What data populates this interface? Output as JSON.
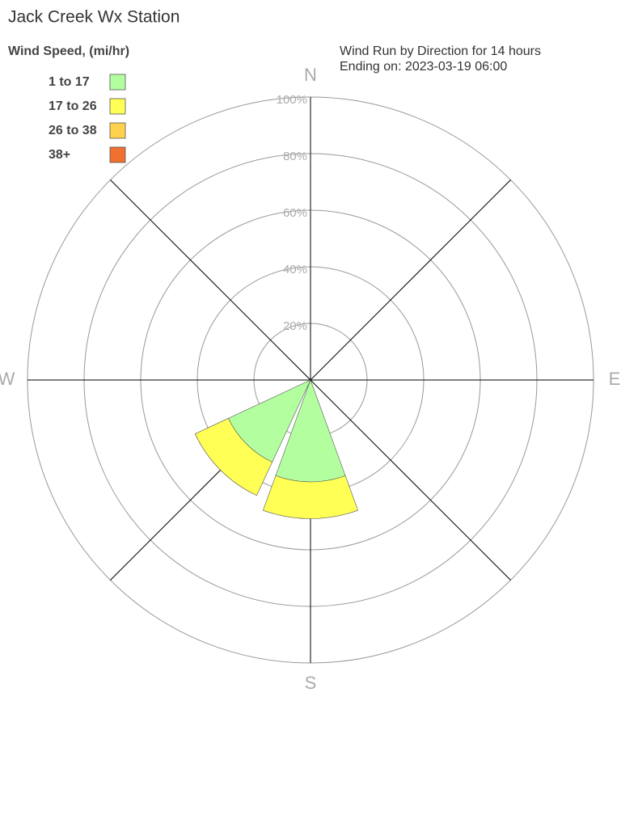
{
  "chart_data": {
    "type": "windrose",
    "title": "Jack Creek Wx Station",
    "subtitle": [
      "Wind Run by Direction for 14 hours",
      "Ending on: 2023-03-19 06:00"
    ],
    "legend_title": "Wind Speed, (mi/hr)",
    "directions": [
      "N",
      null,
      "E",
      null,
      "S",
      null,
      "W",
      null
    ],
    "series": [
      {
        "name": "1 to 17",
        "color": "#b3ffa0",
        "values": [
          0,
          0,
          0,
          0,
          36,
          32,
          0,
          0
        ]
      },
      {
        "name": "17 to 26",
        "color": "#ffff55",
        "values": [
          0,
          0,
          0,
          0,
          13,
          13,
          0,
          0
        ]
      },
      {
        "name": "26 to 38",
        "color": "#ffd24d",
        "values": [
          0,
          0,
          0,
          0,
          0,
          0,
          0,
          0
        ]
      },
      {
        "name": "38+",
        "color": "#f07030",
        "values": [
          0,
          0,
          0,
          0,
          0,
          0,
          0,
          0
        ]
      }
    ],
    "rlim": [
      0,
      100
    ],
    "rticks": [
      {
        "value": 20,
        "label": "20%"
      },
      {
        "value": 40,
        "label": "40%"
      },
      {
        "value": 60,
        "label": "60%"
      },
      {
        "value": 80,
        "label": "80%"
      },
      {
        "value": 100,
        "label": "100%"
      }
    ],
    "legend": "upper left"
  }
}
